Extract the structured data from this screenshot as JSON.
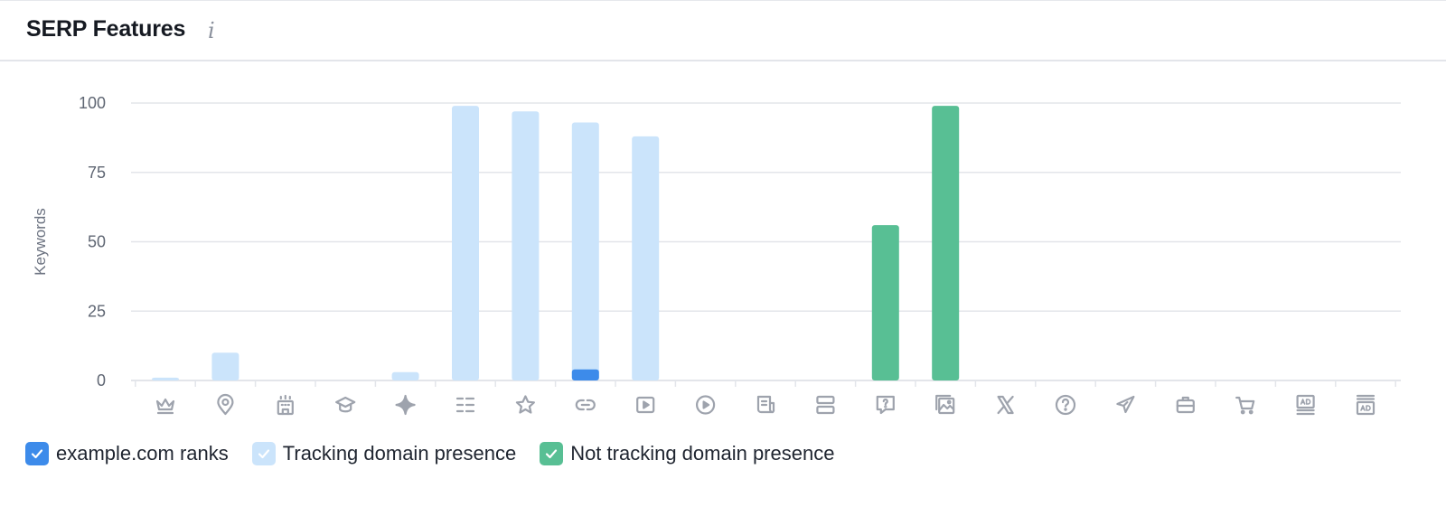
{
  "header": {
    "title": "SERP Features",
    "info_icon": "info-icon"
  },
  "colors": {
    "ranks": "#3d8bea",
    "tracking": "#cbe4fb",
    "not_tracking": "#58bf94",
    "grid": "#e3e5ea",
    "icon": "#9ea3ad"
  },
  "chart_data": {
    "type": "bar",
    "ylabel": "Keywords",
    "ylim": [
      0,
      100
    ],
    "yticks": [
      0,
      25,
      50,
      75,
      100
    ],
    "categories": [
      "featured-snippet-icon",
      "local-pack-icon",
      "hotel-pack-icon",
      "knowledge-panel-icon",
      "ai-overview-icon",
      "sitelinks-icon",
      "reviews-icon",
      "link-icon",
      "video-icon",
      "featured-video-icon",
      "top-stories-icon",
      "carousel-icon",
      "people-also-ask-icon",
      "image-pack-icon",
      "x-twitter-icon",
      "faq-icon",
      "flights-icon",
      "jobs-icon",
      "shopping-icon",
      "ads-top-icon",
      "ads-bottom-icon"
    ],
    "series": [
      {
        "name": "example.com ranks",
        "color": "#3d8bea",
        "values": [
          0,
          0,
          0,
          0,
          0,
          0,
          0,
          4,
          0,
          0,
          0,
          0,
          0,
          0,
          0,
          0,
          0,
          0,
          0,
          0,
          0
        ]
      },
      {
        "name": "Tracking domain presence",
        "color": "#cbe4fb",
        "values": [
          1,
          10,
          0,
          0,
          3,
          99,
          97,
          93,
          88,
          0,
          0,
          0,
          0,
          0,
          0,
          0,
          0,
          0,
          0,
          0,
          0
        ]
      },
      {
        "name": "Not tracking domain presence",
        "color": "#58bf94",
        "values": [
          0,
          0,
          0,
          0,
          0,
          0,
          0,
          0,
          0,
          0,
          0,
          0,
          56,
          99,
          0,
          0,
          0,
          0,
          0,
          0,
          0
        ]
      }
    ],
    "grid": true,
    "legend_position": "bottom-left"
  },
  "legend": [
    {
      "label": "example.com ranks",
      "color": "#3d8bea",
      "checked": true
    },
    {
      "label": "Tracking domain presence",
      "color": "#cbe4fb",
      "checked": true
    },
    {
      "label": "Not tracking domain presence",
      "color": "#58bf94",
      "checked": true
    }
  ]
}
